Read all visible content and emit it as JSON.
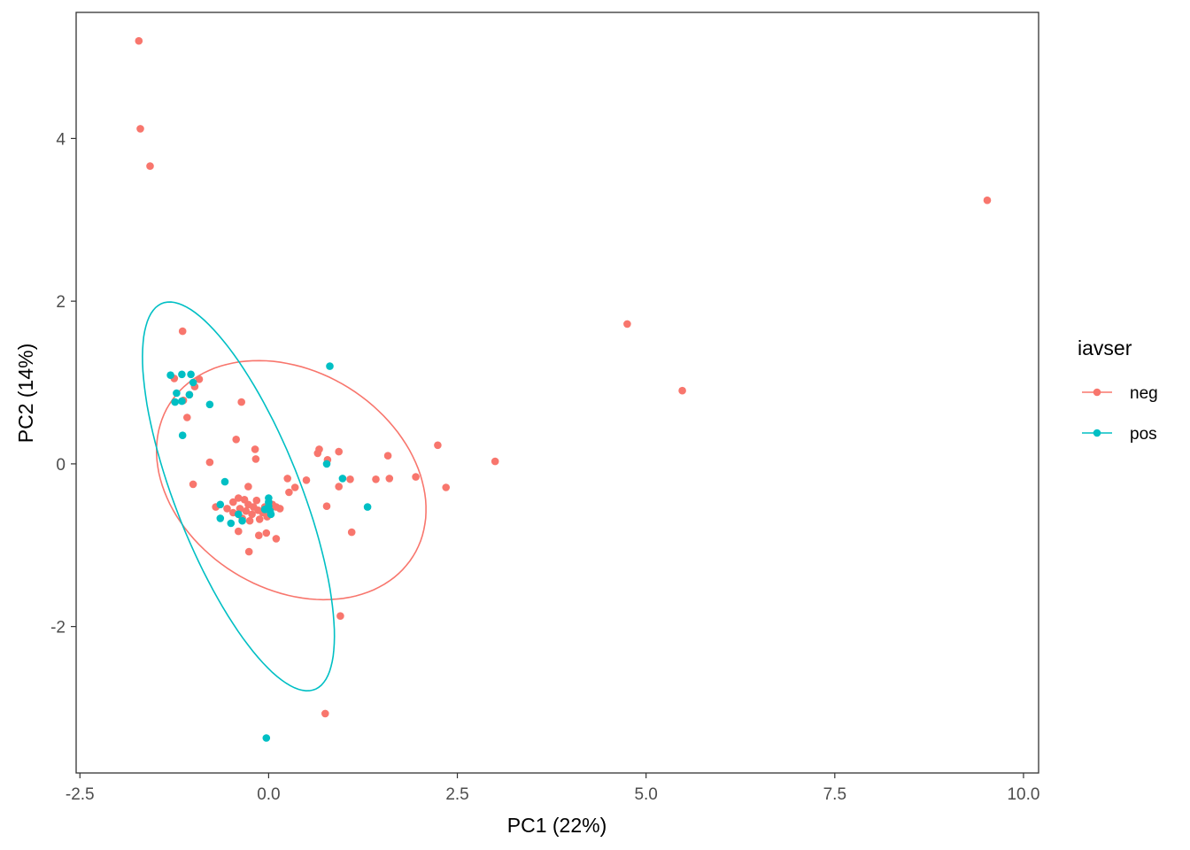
{
  "chart_data": {
    "type": "scatter",
    "xlabel": "PC1 (22%)",
    "ylabel": "PC2 (14%)",
    "xlim": [
      -2.55,
      10.2
    ],
    "ylim": [
      -3.8,
      5.55
    ],
    "x_ticks": [
      -2.5,
      0.0,
      2.5,
      5.0,
      7.5,
      10.0
    ],
    "x_tick_labels": [
      "-2.5",
      "0.0",
      "2.5",
      "5.0",
      "7.5",
      "10.0"
    ],
    "y_ticks": [
      -2,
      0,
      2,
      4
    ],
    "y_tick_labels": [
      "-2",
      "0",
      "2",
      "4"
    ],
    "grid": false,
    "legend": {
      "title": "iavser",
      "placement": "right"
    },
    "series": [
      {
        "name": "neg",
        "color": "#F8766D",
        "points": [
          [
            -1.72,
            5.2
          ],
          [
            -1.7,
            4.12
          ],
          [
            -1.57,
            3.66
          ],
          [
            9.52,
            3.24
          ],
          [
            4.75,
            1.72
          ],
          [
            5.48,
            0.9
          ],
          [
            -1.14,
            1.63
          ],
          [
            -1.25,
            1.05
          ],
          [
            -1.13,
            0.78
          ],
          [
            -1.05,
            0.85
          ],
          [
            -0.92,
            1.04
          ],
          [
            -0.98,
            0.95
          ],
          [
            -1.08,
            0.57
          ],
          [
            -0.36,
            0.76
          ],
          [
            -0.43,
            0.3
          ],
          [
            -0.18,
            0.18
          ],
          [
            -0.17,
            0.06
          ],
          [
            -0.78,
            0.02
          ],
          [
            -1.0,
            -0.25
          ],
          [
            -0.27,
            -0.28
          ],
          [
            0.25,
            -0.18
          ],
          [
            0.35,
            -0.29
          ],
          [
            0.5,
            -0.2
          ],
          [
            0.27,
            -0.35
          ],
          [
            0.65,
            0.13
          ],
          [
            0.67,
            0.18
          ],
          [
            0.78,
            0.05
          ],
          [
            0.93,
            0.15
          ],
          [
            0.93,
            -0.28
          ],
          [
            1.08,
            -0.19
          ],
          [
            1.42,
            -0.19
          ],
          [
            1.6,
            -0.18
          ],
          [
            1.58,
            0.1
          ],
          [
            2.24,
            0.23
          ],
          [
            1.95,
            -0.16
          ],
          [
            2.35,
            -0.29
          ],
          [
            3.0,
            0.03
          ],
          [
            -0.7,
            -0.53
          ],
          [
            -0.55,
            -0.55
          ],
          [
            -0.47,
            -0.6
          ],
          [
            -0.47,
            -0.47
          ],
          [
            -0.4,
            -0.42
          ],
          [
            -0.38,
            -0.55
          ],
          [
            -0.35,
            -0.67
          ],
          [
            -0.32,
            -0.44
          ],
          [
            -0.3,
            -0.58
          ],
          [
            -0.27,
            -0.5
          ],
          [
            -0.25,
            -0.7
          ],
          [
            -0.22,
            -0.62
          ],
          [
            -0.2,
            -0.53
          ],
          [
            -0.16,
            -0.45
          ],
          [
            -0.14,
            -0.57
          ],
          [
            -0.12,
            -0.68
          ],
          [
            -0.08,
            -0.6
          ],
          [
            -0.05,
            -0.53
          ],
          [
            -0.02,
            -0.65
          ],
          [
            0.05,
            -0.5
          ],
          [
            0.1,
            -0.53
          ],
          [
            0.15,
            -0.55
          ],
          [
            -0.13,
            -0.88
          ],
          [
            -0.03,
            -0.85
          ],
          [
            0.1,
            -0.92
          ],
          [
            -0.4,
            -0.83
          ],
          [
            -0.26,
            -1.08
          ],
          [
            0.77,
            -0.52
          ],
          [
            1.1,
            -0.84
          ],
          [
            0.95,
            -1.87
          ],
          [
            0.75,
            -3.07
          ]
        ]
      },
      {
        "name": "pos",
        "color": "#00BFC4",
        "points": [
          [
            0.81,
            1.2
          ],
          [
            -1.3,
            1.09
          ],
          [
            -1.15,
            1.1
          ],
          [
            -1.03,
            1.1
          ],
          [
            -1.22,
            0.87
          ],
          [
            -1.0,
            1.0
          ],
          [
            -1.05,
            0.85
          ],
          [
            -1.24,
            0.76
          ],
          [
            -1.15,
            0.77
          ],
          [
            -0.78,
            0.73
          ],
          [
            -1.14,
            0.35
          ],
          [
            -0.58,
            -0.22
          ],
          [
            -0.64,
            -0.5
          ],
          [
            -0.64,
            -0.67
          ],
          [
            -0.5,
            -0.73
          ],
          [
            -0.4,
            -0.62
          ],
          [
            -0.35,
            -0.7
          ],
          [
            0.0,
            -0.42
          ],
          [
            0.0,
            -0.47
          ],
          [
            0.0,
            -0.52
          ],
          [
            -0.05,
            -0.56
          ],
          [
            0.02,
            -0.58
          ],
          [
            0.03,
            -0.62
          ],
          [
            0.77,
            0.0
          ],
          [
            0.98,
            -0.18
          ],
          [
            1.31,
            -0.53
          ],
          [
            -0.03,
            -3.37
          ]
        ]
      }
    ],
    "ellipses": [
      {
        "series": "neg",
        "center": [
          0.3,
          -0.2
        ],
        "semi_axes": [
          1.87,
          1.36
        ],
        "angle_deg": -25.7
      },
      {
        "series": "pos",
        "center": [
          -0.4,
          -0.4
        ],
        "semi_axes": [
          2.58,
          0.82
        ],
        "angle_deg": -66.6
      }
    ]
  }
}
